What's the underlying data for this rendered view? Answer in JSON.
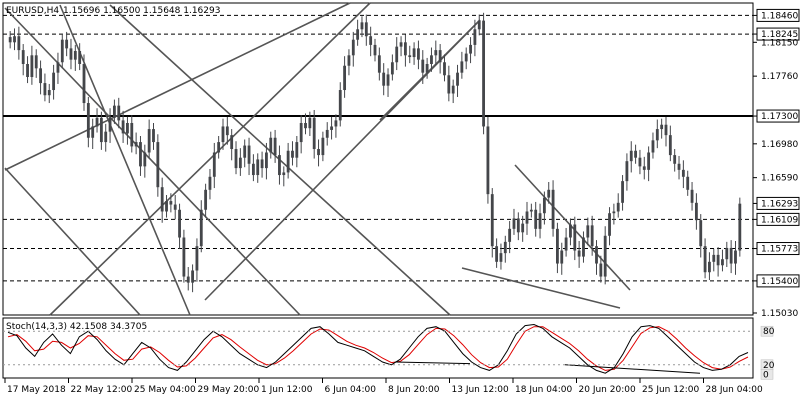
{
  "header": {
    "symbol": "EURUSD,H4",
    "ohlc": "1.15696 1.16500 1.15648 1.16293"
  },
  "indicator": {
    "label": "Stoch(14,3,3) 42.1508 34.3705",
    "levels": [
      "80",
      "20",
      "0"
    ]
  },
  "colors": {
    "candle": "#44464a",
    "trendline": "#555555",
    "stoch_main": "#000000",
    "stoch_signal": "#e00000",
    "bid_label_bg": "#ffffff"
  },
  "chart_data": {
    "type": "candlestick",
    "ylim": [
      1.1503,
      1.1858
    ],
    "price_ticks": [
      "1.18460",
      "1.18245",
      "1.18150",
      "1.17760",
      "1.17300",
      "1.16980",
      "1.16590",
      "1.16293",
      "1.16109",
      "1.15773",
      "1.15400",
      "1.15030"
    ],
    "horizontal_levels": [
      {
        "value": 1.1846,
        "label": "1.18460",
        "style": "dashed"
      },
      {
        "value": 1.18245,
        "label": "1.18245",
        "style": "dashed"
      },
      {
        "value": 1.173,
        "label": "1.17300",
        "style": "solid-bold"
      },
      {
        "value": 1.16109,
        "label": "1.16109",
        "style": "dashed"
      },
      {
        "value": 1.15773,
        "label": "1.15773",
        "style": "dashed"
      },
      {
        "value": 1.154,
        "label": "1.15400",
        "style": "dashed"
      }
    ],
    "current_price": {
      "value": 1.16293,
      "label": "1.16293"
    },
    "time_labels": [
      "17 May 2018",
      "22 May 12:00",
      "25 May 04:00",
      "29 May 20:00",
      "1 Jun 12:00",
      "6 Jun 04:00",
      "8 Jun 20:00",
      "13 Jun 12:00",
      "18 Jun 04:00",
      "20 Jun 20:00",
      "25 Jun 12:00",
      "28 Jun 04:00"
    ],
    "closes": [
      1.1815,
      1.1822,
      1.1806,
      1.179,
      1.1775,
      1.18,
      1.1785,
      1.1768,
      1.1754,
      1.176,
      1.178,
      1.1792,
      1.1818,
      1.1808,
      1.1795,
      1.1805,
      1.179,
      1.1745,
      1.1705,
      1.1718,
      1.1728,
      1.17,
      1.1712,
      1.1728,
      1.1742,
      1.1725,
      1.171,
      1.1722,
      1.1695,
      1.17,
      1.1672,
      1.1688,
      1.1715,
      1.17,
      1.1648,
      1.162,
      1.1632,
      1.1628,
      1.1622,
      1.159,
      1.1545,
      1.1538,
      1.1552,
      1.158,
      1.1622,
      1.1645,
      1.166,
      1.1688,
      1.17,
      1.1718,
      1.1708,
      1.1692,
      1.167,
      1.1682,
      1.1696,
      1.1675,
      1.1662,
      1.168,
      1.167,
      1.1688,
      1.1705,
      1.1685,
      1.1662,
      1.1665,
      1.169,
      1.1682,
      1.17,
      1.1722,
      1.1716,
      1.1728,
      1.1692,
      1.1685,
      1.1705,
      1.1714,
      1.1718,
      1.1725,
      1.176,
      1.1788,
      1.18,
      1.1818,
      1.183,
      1.1838,
      1.1822,
      1.1812,
      1.18,
      1.178,
      1.1765,
      1.1778,
      1.1792,
      1.181,
      1.1815,
      1.18,
      1.1798,
      1.1808,
      1.1795,
      1.178,
      1.179,
      1.18,
      1.1806,
      1.1792,
      1.1777,
      1.1756,
      1.1765,
      1.178,
      1.1793,
      1.1802,
      1.1812,
      1.183,
      1.184,
      1.1718,
      1.164,
      1.158,
      1.1562,
      1.1572,
      1.1585,
      1.16,
      1.1612,
      1.1596,
      1.1606,
      1.162,
      1.1622,
      1.16,
      1.1618,
      1.1636,
      1.1645,
      1.16,
      1.156,
      1.1575,
      1.159,
      1.1605,
      1.1575,
      1.1568,
      1.159,
      1.1604,
      1.158,
      1.156,
      1.1545,
      1.1592,
      1.1618,
      1.162,
      1.163,
      1.1655,
      1.1678,
      1.169,
      1.1682,
      1.1672,
      1.1668,
      1.1688,
      1.1702,
      1.1715,
      1.172,
      1.1708,
      1.1685,
      1.1675,
      1.1668,
      1.166,
      1.1645,
      1.163,
      1.161,
      1.158,
      1.155,
      1.1562,
      1.157,
      1.1558,
      1.1565,
      1.1578,
      1.156,
      1.1575,
      1.1629
    ],
    "stoch_main": [
      78,
      72,
      50,
      35,
      60,
      75,
      55,
      40,
      70,
      80,
      65,
      45,
      30,
      20,
      40,
      60,
      50,
      30,
      15,
      10,
      25,
      45,
      65,
      80,
      70,
      55,
      40,
      30,
      20,
      15,
      25,
      40,
      55,
      70,
      85,
      88,
      75,
      60,
      55,
      50,
      45,
      35,
      25,
      20,
      30,
      50,
      70,
      85,
      88,
      80,
      60,
      40,
      25,
      15,
      10,
      20,
      45,
      75,
      90,
      92,
      85,
      70,
      60,
      50,
      35,
      20,
      10,
      5,
      15,
      40,
      70,
      88,
      90,
      85,
      70,
      55,
      40,
      25,
      15,
      10,
      12,
      20,
      35,
      42
    ],
    "stoch_signal": [
      70,
      74,
      62,
      45,
      48,
      62,
      60,
      50,
      58,
      72,
      70,
      55,
      40,
      28,
      30,
      48,
      52,
      42,
      28,
      16,
      18,
      32,
      50,
      68,
      74,
      65,
      52,
      40,
      28,
      20,
      22,
      32,
      45,
      60,
      75,
      84,
      82,
      72,
      62,
      55,
      50,
      42,
      32,
      24,
      26,
      38,
      56,
      74,
      85,
      84,
      72,
      56,
      38,
      24,
      15,
      16,
      30,
      56,
      80,
      88,
      88,
      78,
      68,
      58,
      45,
      30,
      18,
      10,
      12,
      28,
      52,
      76,
      86,
      88,
      80,
      66,
      50,
      36,
      24,
      15,
      12,
      16,
      26,
      34
    ]
  }
}
